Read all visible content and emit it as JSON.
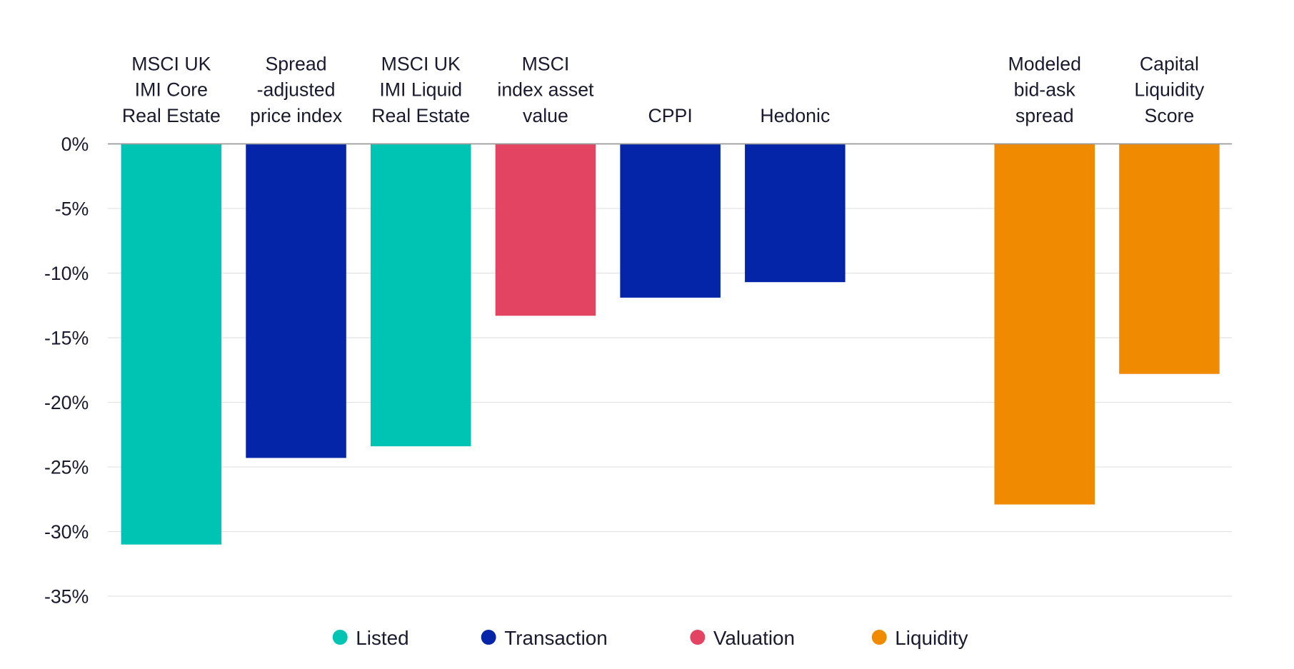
{
  "chart_data": {
    "type": "bar",
    "categories": [
      [
        "MSCI UK",
        "IMI Core",
        "Real Estate"
      ],
      [
        "Spread",
        "-adjusted",
        "price index"
      ],
      [
        "MSCI UK",
        "IMI Liquid",
        "Real Estate"
      ],
      [
        "MSCI",
        "index asset",
        "value"
      ],
      [
        "CPPI"
      ],
      [
        "Hedonic"
      ],
      [
        "Modeled",
        "bid-ask",
        "spread"
      ],
      [
        "Capital",
        "Liquidity",
        "Score"
      ]
    ],
    "values": [
      -31.0,
      -24.3,
      -23.4,
      -13.3,
      -11.9,
      -10.7,
      -27.9,
      -17.8
    ],
    "groups": [
      "Listed",
      "Transaction",
      "Listed",
      "Valuation",
      "Transaction",
      "Transaction",
      "Liquidity",
      "Liquidity"
    ],
    "ylim": [
      -35,
      0
    ],
    "yticks": [
      0,
      -5,
      -10,
      -15,
      -20,
      -25,
      -30,
      -35
    ],
    "ytick_labels": [
      "0%",
      "-5%",
      "-10%",
      "-15%",
      "-20%",
      "-25%",
      "-30%",
      "-35%"
    ],
    "grid": true,
    "legend_position": "bottom",
    "legend": [
      {
        "name": "Listed",
        "color": "#00C4B3"
      },
      {
        "name": "Transaction",
        "color": "#0525A8"
      },
      {
        "name": "Valuation",
        "color": "#E34462"
      },
      {
        "name": "Liquidity",
        "color": "#F08A00"
      }
    ],
    "title": "",
    "xlabel": "",
    "ylabel": ""
  }
}
